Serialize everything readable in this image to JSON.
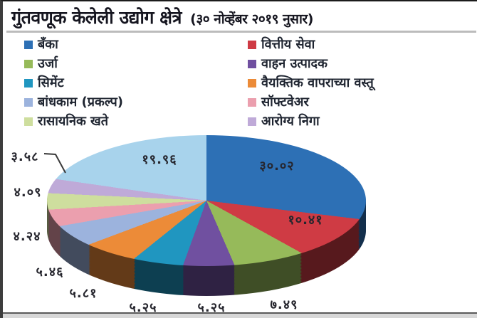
{
  "title": {
    "main": "गुंतवणूक केलेली उद्योग क्षेत्रे",
    "suffix": "(३० नोव्हेंबर २०१९ नुसार)"
  },
  "legend": {
    "left": [
      {
        "label": "बँका",
        "color": "#2d70b5"
      },
      {
        "label": "उर्जा",
        "color": "#96ba5a"
      },
      {
        "label": "सिमेंट",
        "color": "#2096c0"
      },
      {
        "label": "बांधकाम (प्रकल्प)",
        "color": "#9cb3dd"
      },
      {
        "label": "रासायनिक खते",
        "color": "#cede9e"
      }
    ],
    "right": [
      {
        "label": "वित्तीय सेवा",
        "color": "#cf3b44"
      },
      {
        "label": "वाहन उत्पादक",
        "color": "#7050a0"
      },
      {
        "label": "वैयक्तिक वापराच्या वस्तू",
        "color": "#ec8b38"
      },
      {
        "label": "सॉफ्टवेअर",
        "color": "#eb9fae"
      },
      {
        "label": "आरोग्य निगा",
        "color": "#bfaad8"
      }
    ]
  },
  "chart_data": {
    "type": "pie",
    "style": "3d",
    "title": "गुंतवणूक केलेली उद्योग क्षेत्रे (३० नोव्हेंबर २०१९ नुसार)",
    "direction": "clockwise",
    "start_angle_deg": 0,
    "legend_position": "top",
    "slices": [
      {
        "sector": "बँका",
        "value": 30.02,
        "display": "३०.०२",
        "color": "#2d70b5"
      },
      {
        "sector": "वित्तीय सेवा",
        "value": 10.41,
        "display": "१०.४१",
        "color": "#cf3b44"
      },
      {
        "sector": "उर्जा",
        "value": 7.49,
        "display": "७.४९",
        "color": "#96ba5a"
      },
      {
        "sector": "वाहन उत्पादक",
        "value": 5.25,
        "display": "५.२५",
        "color": "#7050a0"
      },
      {
        "sector": "सिमेंट",
        "value": 5.25,
        "display": "५.२५",
        "color": "#2096c0"
      },
      {
        "sector": "वैयक्तिक वापराच्या वस्तू",
        "value": 5.81,
        "display": "५.८१",
        "color": "#ec8b38"
      },
      {
        "sector": "बांधकाम (प्रकल्प)",
        "value": 5.46,
        "display": "५.४६",
        "color": "#9cb3dd"
      },
      {
        "sector": "सॉफ्टवेअर",
        "value": 4.24,
        "display": "४.२४",
        "color": "#eb9fae"
      },
      {
        "sector": "रासायनिक खते",
        "value": 4.09,
        "display": "४.०९",
        "color": "#cede9e"
      },
      {
        "sector": "आरोग्य निगा",
        "value": 3.58,
        "display": "३.५८",
        "color": "#bfaad8"
      },
      {
        "sector": "",
        "value": 19.96,
        "display": "१९.९६",
        "color": "#a8d3ec"
      }
    ]
  }
}
